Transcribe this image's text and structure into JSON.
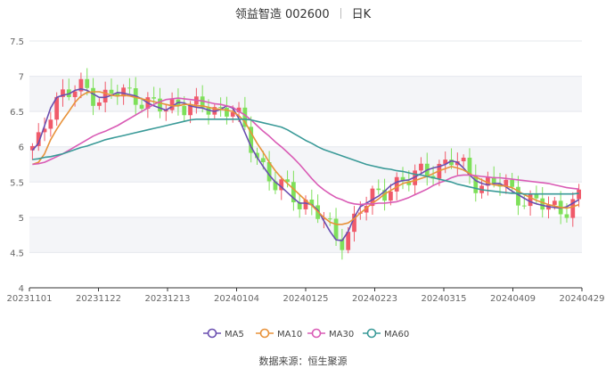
{
  "header": {
    "company": "领益智造 002600",
    "period": "日K"
  },
  "footer": {
    "source": "数据来源：恒生聚源"
  },
  "chart_data": {
    "type": "candlestick",
    "title": "领益智造 002600 日K",
    "ylim": [
      4,
      7.5
    ],
    "y_ticks": [
      "4",
      "4.5",
      "5",
      "5.5",
      "6",
      "6.5",
      "7",
      "7.5"
    ],
    "x_ticks": [
      "20231101",
      "20231122",
      "20231213",
      "20240104",
      "20240125",
      "20240223",
      "20240315",
      "20240409",
      "20240429"
    ],
    "up_color": "#f05a6a",
    "down_color": "#7ee05a",
    "legend": [
      {
        "name": "MA5",
        "color": "#6a4fb0"
      },
      {
        "name": "MA10",
        "color": "#e8923a"
      },
      {
        "name": "MA30",
        "color": "#d95bb5"
      },
      {
        "name": "MA60",
        "color": "#3a9a98"
      }
    ],
    "ma_series": {
      "MA5": [
        5.95,
        6.05,
        6.3,
        6.55,
        6.7,
        6.73,
        6.75,
        6.8,
        6.82,
        6.8,
        6.75,
        6.7,
        6.7,
        6.73,
        6.77,
        6.76,
        6.74,
        6.72,
        6.68,
        6.62,
        6.58,
        6.55,
        6.52,
        6.57,
        6.63,
        6.62,
        6.58,
        6.56,
        6.55,
        6.52,
        6.5,
        6.53,
        6.58,
        6.55,
        6.4,
        6.2,
        6.0,
        5.85,
        5.72,
        5.6,
        5.5,
        5.43,
        5.35,
        5.27,
        5.2,
        5.2,
        5.18,
        5.1,
        4.95,
        4.8,
        4.68,
        4.67,
        4.8,
        5.0,
        5.15,
        5.2,
        5.25,
        5.3,
        5.37,
        5.45,
        5.5,
        5.52,
        5.53,
        5.57,
        5.62,
        5.67,
        5.7,
        5.72,
        5.75,
        5.8,
        5.78,
        5.7,
        5.6,
        5.52,
        5.48,
        5.46,
        5.48,
        5.48,
        5.43,
        5.37,
        5.32,
        5.27,
        5.22,
        5.19,
        5.17,
        5.15,
        5.14,
        5.13,
        5.15,
        5.2,
        5.25
      ],
      "MA10": [
        5.75,
        5.78,
        5.9,
        6.1,
        6.25,
        6.38,
        6.5,
        6.63,
        6.72,
        6.77,
        6.78,
        6.78,
        6.76,
        6.73,
        6.72,
        6.73,
        6.72,
        6.7,
        6.68,
        6.66,
        6.64,
        6.62,
        6.6,
        6.58,
        6.58,
        6.6,
        6.6,
        6.58,
        6.58,
        6.56,
        6.54,
        6.53,
        6.52,
        6.5,
        6.44,
        6.35,
        6.2,
        6.05,
        5.92,
        5.78,
        5.66,
        5.56,
        5.48,
        5.4,
        5.32,
        5.24,
        5.17,
        5.08,
        5.0,
        4.93,
        4.9,
        4.9,
        4.92,
        4.98,
        5.06,
        5.13,
        5.2,
        5.26,
        5.33,
        5.38,
        5.43,
        5.48,
        5.5,
        5.52,
        5.55,
        5.58,
        5.62,
        5.66,
        5.69,
        5.72,
        5.7,
        5.67,
        5.62,
        5.57,
        5.53,
        5.49,
        5.46,
        5.45,
        5.44,
        5.42,
        5.37,
        5.32,
        5.28,
        5.24,
        5.21,
        5.18,
        5.16,
        5.14,
        5.13,
        5.15,
        5.18
      ],
      "MA30": [
        5.75,
        5.76,
        5.78,
        5.82,
        5.86,
        5.9,
        5.95,
        6.0,
        6.05,
        6.1,
        6.15,
        6.19,
        6.22,
        6.26,
        6.3,
        6.35,
        6.4,
        6.45,
        6.5,
        6.55,
        6.6,
        6.64,
        6.67,
        6.68,
        6.69,
        6.68,
        6.67,
        6.66,
        6.65,
        6.63,
        6.61,
        6.6,
        6.58,
        6.56,
        6.5,
        6.45,
        6.38,
        6.3,
        6.22,
        6.15,
        6.07,
        6.0,
        5.92,
        5.84,
        5.75,
        5.65,
        5.55,
        5.46,
        5.39,
        5.33,
        5.28,
        5.25,
        5.21,
        5.19,
        5.18,
        5.19,
        5.19,
        5.2,
        5.2,
        5.21,
        5.22,
        5.25,
        5.28,
        5.32,
        5.36,
        5.4,
        5.45,
        5.49,
        5.52,
        5.56,
        5.59,
        5.6,
        5.6,
        5.59,
        5.58,
        5.57,
        5.56,
        5.56,
        5.55,
        5.54,
        5.53,
        5.52,
        5.51,
        5.5,
        5.49,
        5.48,
        5.46,
        5.44,
        5.42,
        5.41,
        5.4
      ],
      "MA60": [
        5.82,
        5.83,
        5.85,
        5.86,
        5.88,
        5.9,
        5.93,
        5.96,
        5.99,
        6.01,
        6.04,
        6.07,
        6.1,
        6.12,
        6.14,
        6.16,
        6.18,
        6.2,
        6.22,
        6.24,
        6.26,
        6.28,
        6.3,
        6.32,
        6.34,
        6.36,
        6.38,
        6.39,
        6.39,
        6.39,
        6.39,
        6.39,
        6.39,
        6.39,
        6.39,
        6.39,
        6.38,
        6.36,
        6.34,
        6.32,
        6.3,
        6.28,
        6.24,
        6.19,
        6.14,
        6.09,
        6.05,
        6.0,
        5.96,
        5.93,
        5.9,
        5.87,
        5.84,
        5.81,
        5.78,
        5.75,
        5.73,
        5.71,
        5.69,
        5.68,
        5.66,
        5.65,
        5.63,
        5.61,
        5.6,
        5.58,
        5.56,
        5.54,
        5.52,
        5.5,
        5.47,
        5.45,
        5.43,
        5.41,
        5.39,
        5.38,
        5.37,
        5.36,
        5.35,
        5.34,
        5.34,
        5.33,
        5.33,
        5.33,
        5.33,
        5.33,
        5.33,
        5.33,
        5.33,
        5.33,
        5.34
      ]
    }
  }
}
